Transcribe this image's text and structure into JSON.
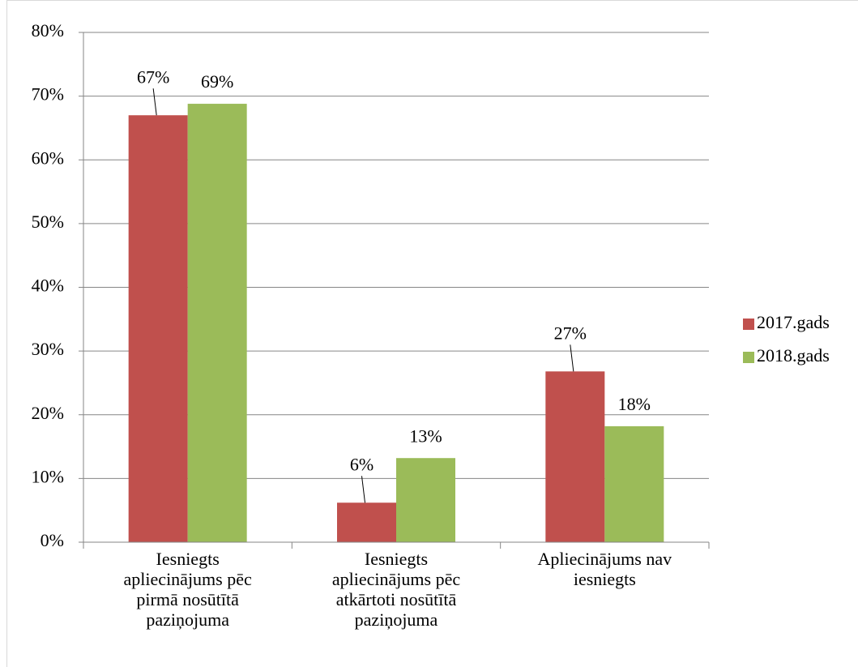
{
  "chart_data": {
    "type": "bar",
    "categories": [
      "Iesniegts\napliecinājums pēc\npirmā nosūtītā\npaziņojuma",
      "Iesniegts\napliecinājums pēc\natkārtoti nosūtītā\npaziņojuma",
      "Apliecinājums nav\niesniegts"
    ],
    "series": [
      {
        "name": "2017.gads",
        "color": "#c0504d",
        "values": [
          67.0,
          6.2,
          26.8
        ],
        "value_labels": [
          "67%",
          "6%",
          "27%"
        ]
      },
      {
        "name": "2018.gads",
        "color": "#9bbb59",
        "values": [
          68.8,
          13.2,
          18.2
        ],
        "value_labels": [
          "69%",
          "13%",
          "18%"
        ]
      }
    ],
    "ylim": [
      0,
      80
    ],
    "yticks": [
      {
        "value": 0,
        "label": "0%"
      },
      {
        "value": 10,
        "label": "10%"
      },
      {
        "value": 20,
        "label": "20%"
      },
      {
        "value": 30,
        "label": "30%"
      },
      {
        "value": 40,
        "label": "40%"
      },
      {
        "value": 50,
        "label": "50%"
      },
      {
        "value": 60,
        "label": "60%"
      },
      {
        "value": 70,
        "label": "70%"
      },
      {
        "value": 80,
        "label": "80%"
      }
    ],
    "grid": true,
    "legend": "right"
  }
}
